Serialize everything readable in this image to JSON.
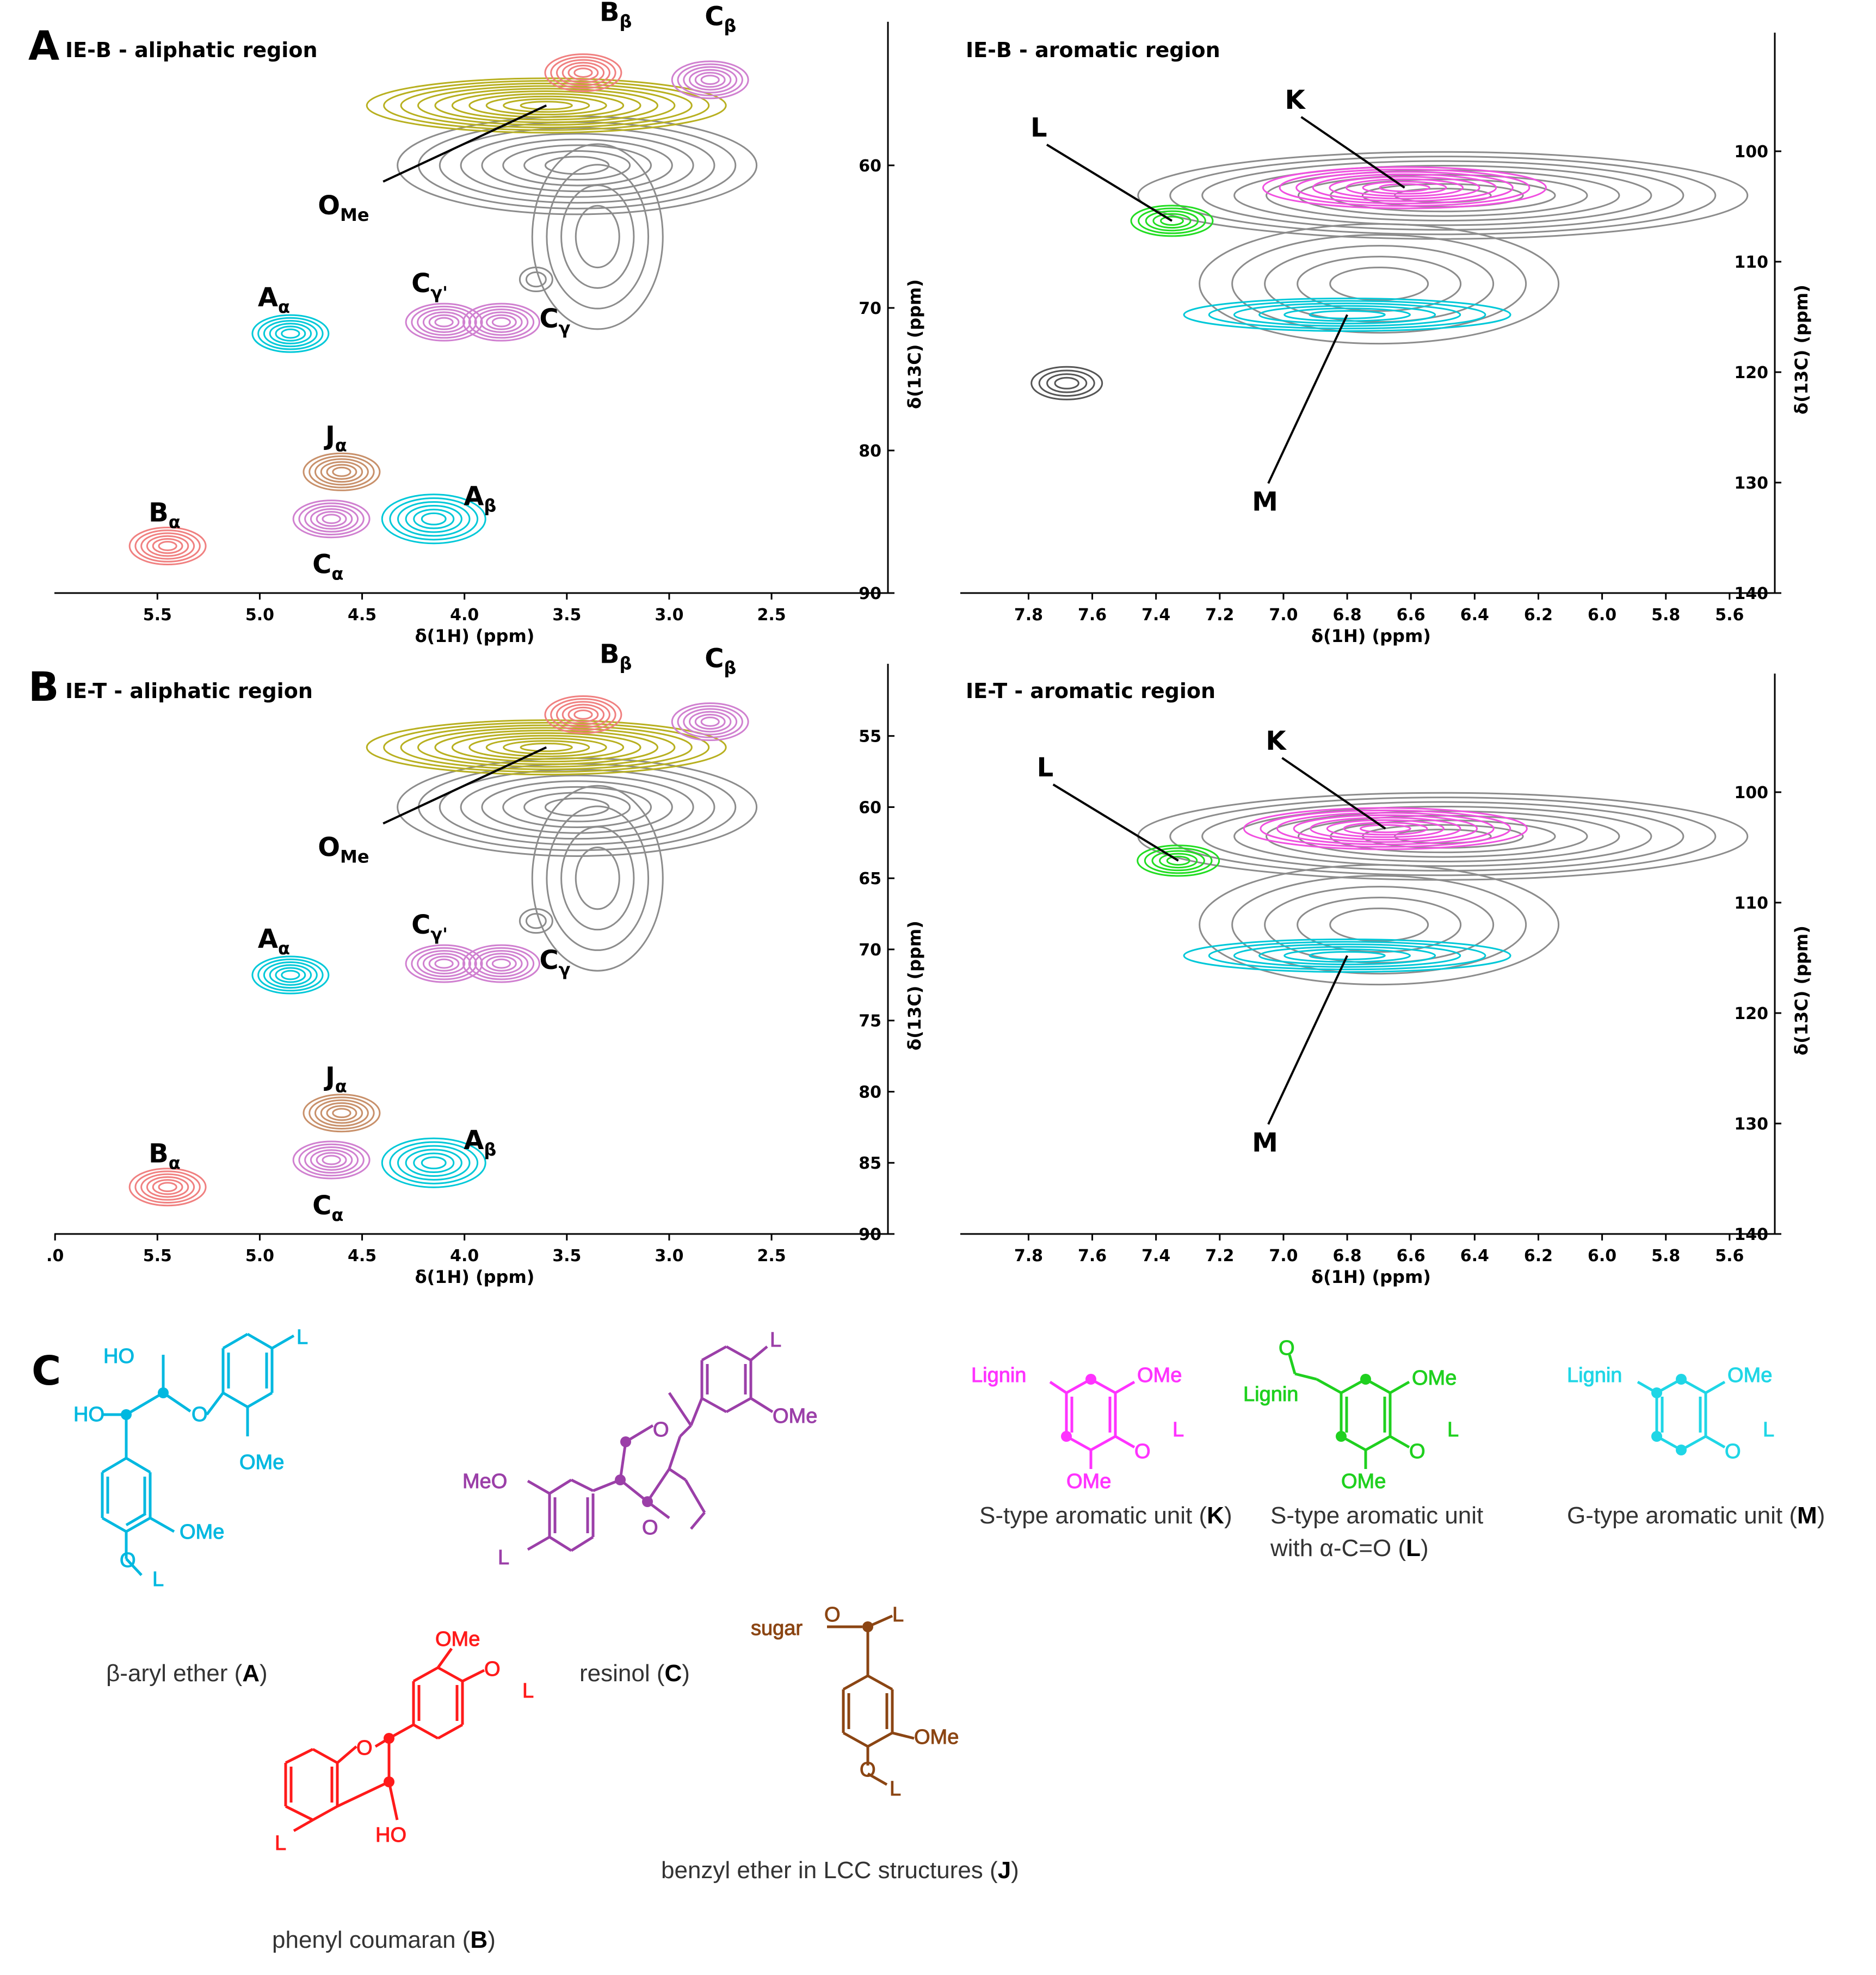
{
  "chart_data": [
    {
      "id": "A-aliphatic",
      "panel_letter": "A",
      "type": "heatmap",
      "title": "IE-B  -  aliphatic region",
      "xlabel": "δ(1H) (ppm)",
      "ylabel": "δ(13C) (ppm)",
      "xlim": [
        5.95,
        1.95
      ],
      "ylim": [
        50.5,
        90
      ],
      "x_ticks": [
        "5.5",
        "5.0",
        "4.5",
        "4.0",
        "3.5",
        "3.0",
        "2.5"
      ],
      "y_ticks": [
        "60",
        "70",
        "80",
        "90"
      ],
      "peaks": [
        {
          "label": "OMe",
          "x": 3.6,
          "y": 55.8,
          "color": "#b8b020"
        },
        {
          "label": "Bβ",
          "x": 3.42,
          "y": 53.5,
          "color": "#f08080"
        },
        {
          "label": "Cβ",
          "x": 2.8,
          "y": 54.0,
          "color": "#d080d0"
        },
        {
          "label": "Aα",
          "x": 4.85,
          "y": 71.8,
          "color": "#00c8d8"
        },
        {
          "label": "Cγ'",
          "x": 4.1,
          "y": 71.0,
          "color": "#d080d0"
        },
        {
          "label": "Cγ",
          "x": 3.82,
          "y": 71.0,
          "color": "#d080d0"
        },
        {
          "label": "Jα",
          "x": 4.6,
          "y": 81.5,
          "color": "#c8906a"
        },
        {
          "label": "Aβ",
          "x": 4.15,
          "y": 84.8,
          "color": "#00c8d8"
        },
        {
          "label": "Bα",
          "x": 5.45,
          "y": 86.7,
          "color": "#f08080"
        },
        {
          "label": "Cα",
          "x": 4.65,
          "y": 84.8,
          "color": "#d080d0"
        }
      ]
    },
    {
      "id": "A-aromatic",
      "panel_letter": "",
      "type": "heatmap",
      "title": "IE-B  -  aromatic region",
      "xlabel": "δ(1H) (ppm)",
      "ylabel": "δ(13C) (ppm)",
      "xlim": [
        7.98,
        5.47
      ],
      "ylim": [
        90,
        140
      ],
      "x_ticks": [
        "7.8",
        "7.6",
        "7.4",
        "7.2",
        "7.0",
        "6.8",
        "6.6",
        "6.4",
        "6.2",
        "6.0",
        "5.8",
        "5.6"
      ],
      "y_ticks": [
        "100",
        "110",
        "120",
        "130",
        "140"
      ],
      "peaks": [
        {
          "label": "K",
          "x": 6.62,
          "y": 103.3,
          "color": "#f050e0"
        },
        {
          "label": "L",
          "x": 7.35,
          "y": 106.3,
          "color": "#22dd22"
        },
        {
          "label": "M",
          "x": 6.8,
          "y": 114.8,
          "color": "#00c8d8"
        }
      ]
    },
    {
      "id": "B-aliphatic",
      "panel_letter": "B",
      "type": "heatmap",
      "title": "IE-T  -  aliphatic region",
      "xlabel": "δ(1H) (ppm)",
      "ylabel": "δ(13C) (ppm)",
      "xlim": [
        5.95,
        1.95
      ],
      "ylim": [
        50.5,
        90
      ],
      "x_ticks": [
        ".0",
        "5.5",
        "5.0",
        "4.5",
        "4.0",
        "3.5",
        "3.0",
        "2.5"
      ],
      "y_ticks": [
        "55",
        "60",
        "65",
        "70",
        "75",
        "80",
        "85",
        "90"
      ],
      "peaks": [
        {
          "label": "OMe",
          "x": 3.6,
          "y": 55.8,
          "color": "#b8b020"
        },
        {
          "label": "Bβ",
          "x": 3.42,
          "y": 53.5,
          "color": "#f08080"
        },
        {
          "label": "Cβ",
          "x": 2.8,
          "y": 54.0,
          "color": "#d080d0"
        },
        {
          "label": "Aα",
          "x": 4.85,
          "y": 71.8,
          "color": "#00c8d8"
        },
        {
          "label": "Cγ'",
          "x": 4.1,
          "y": 71.0,
          "color": "#d080d0"
        },
        {
          "label": "Cγ",
          "x": 3.82,
          "y": 71.0,
          "color": "#d080d0"
        },
        {
          "label": "Jα",
          "x": 4.6,
          "y": 81.5,
          "color": "#c8906a"
        },
        {
          "label": "Aβ",
          "x": 4.15,
          "y": 85.0,
          "color": "#00c8d8"
        },
        {
          "label": "Bα",
          "x": 5.45,
          "y": 86.7,
          "color": "#f08080"
        },
        {
          "label": "Cα",
          "x": 4.65,
          "y": 84.8,
          "color": "#d080d0"
        }
      ]
    },
    {
      "id": "B-aromatic",
      "panel_letter": "",
      "type": "heatmap",
      "title": "IE-T  -  aromatic region",
      "xlabel": "δ(1H) (ppm)",
      "ylabel": "δ(13C) (ppm)",
      "xlim": [
        7.98,
        5.47
      ],
      "ylim": [
        90,
        140
      ],
      "x_ticks": [
        "7.8",
        "7.6",
        "7.4",
        "7.2",
        "7.0",
        "6.8",
        "6.6",
        "6.4",
        "6.2",
        "6.0",
        "5.8",
        "5.6"
      ],
      "y_ticks": [
        "100",
        "110",
        "120",
        "130",
        "140"
      ],
      "peaks": [
        {
          "label": "K",
          "x": 6.68,
          "y": 103.3,
          "color": "#f050e0"
        },
        {
          "label": "L",
          "x": 7.33,
          "y": 106.2,
          "color": "#22dd22"
        },
        {
          "label": "M",
          "x": 6.8,
          "y": 114.8,
          "color": "#00c8d8"
        }
      ]
    }
  ],
  "panel_c": {
    "letter": "C",
    "structures": {
      "A": {
        "caption_pre": "β-aryl ether (",
        "letter": "A",
        "caption_post": ")",
        "color": "#00b8e0",
        "labels": {
          "ho1": "HO",
          "ho2": "HO",
          "o": "O",
          "ome1": "OMe",
          "ome2": "OMe",
          "l1": "L",
          "o2": "O",
          "l2": "L"
        }
      },
      "C": {
        "caption_pre": "resinol (",
        "letter": "C",
        "caption_post": ")",
        "color": "#9b3fa8",
        "labels": {
          "o1": "O",
          "o2": "O",
          "l1": "L",
          "ome": "OMe",
          "meo": "MeO",
          "l2": "L"
        }
      },
      "B": {
        "caption_pre": "phenyl coumaran (",
        "letter": "B",
        "caption_post": ")",
        "color": "#ff1a1a",
        "labels": {
          "ome": "OMe",
          "o1": "O",
          "l1": "L",
          "o2": "O",
          "l2": "L",
          "ho": "HO"
        }
      },
      "J": {
        "caption_pre": "benzyl ether in LCC structures (",
        "letter": "J",
        "caption_post": ")",
        "color": "#8b4513",
        "labels": {
          "sugar": "sugar",
          "o1": "O",
          "l1": "L",
          "ome": "OMe",
          "o2": "O",
          "l2": "L"
        }
      },
      "K": {
        "caption_pre": "S-type aromatic unit (",
        "letter": "K",
        "caption_post": ")",
        "color": "#ff33ff",
        "labels": {
          "lignin": "Lignin",
          "ome1": "OMe",
          "o": "O",
          "l": "L",
          "ome2": "OMe"
        }
      },
      "L": {
        "caption_pre": "S-type aromatic unit",
        "caption_line2_pre": "with α-C=O (",
        "letter": "L",
        "caption_post": ")",
        "color": "#1fd01f",
        "labels": {
          "o_top": "O",
          "lignin": "Lignin",
          "ome1": "OMe",
          "o": "O",
          "l": "L",
          "ome2": "OMe"
        }
      },
      "M": {
        "caption_pre": "G-type aromatic unit (",
        "letter": "M",
        "caption_post": ")",
        "color": "#1fd6e6",
        "labels": {
          "lignin": "Lignin",
          "ome": "OMe",
          "o": "O",
          "l": "L"
        }
      }
    }
  },
  "colors": {
    "contour_gray": "#8c8c8c",
    "ome": "#b8b020",
    "a_peaks": "#00c8d8",
    "b_peaks": "#f08080",
    "c_peaks": "#d080d0",
    "j_peaks": "#c8906a",
    "k_peaks": "#f050e0",
    "l_peaks": "#22dd22",
    "m_peaks": "#00c8d8"
  }
}
